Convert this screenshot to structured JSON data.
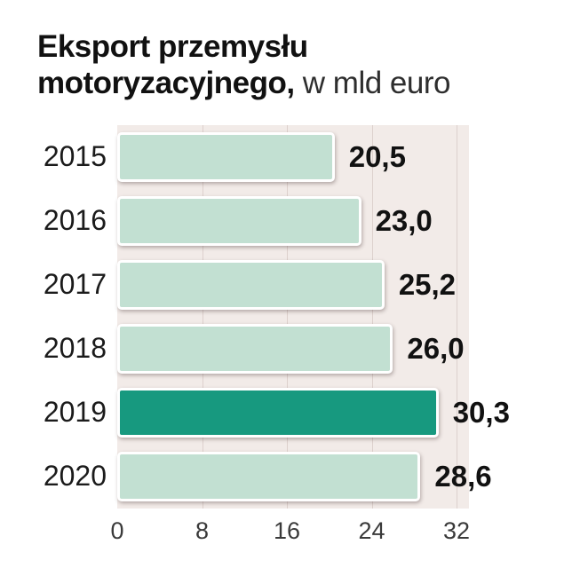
{
  "title": {
    "bold": "Eksport przemysłu motoryzacyjnego,",
    "light": " w mld euro"
  },
  "chart_data": {
    "type": "bar",
    "orientation": "horizontal",
    "title": "Eksport przemysłu motoryzacyjnego, w mld euro",
    "categories": [
      "2015",
      "2016",
      "2017",
      "2018",
      "2019",
      "2020"
    ],
    "values": [
      20.5,
      23.0,
      25.2,
      26.0,
      30.3,
      28.6
    ],
    "value_labels": [
      "20,5",
      "23,0",
      "25,2",
      "26,0",
      "30,3",
      "28,6"
    ],
    "highlighted_index": 4,
    "x_ticks": [
      "0",
      "8",
      "16",
      "24",
      "32"
    ],
    "xlim": [
      0,
      32
    ],
    "grid": true,
    "legend": "none",
    "colors": {
      "bar": "#c2e0d2",
      "bar_highlight": "#17997f",
      "plot_background": "#f2ebe8",
      "gridline": "#ddd1cd",
      "text": "#111111"
    }
  }
}
